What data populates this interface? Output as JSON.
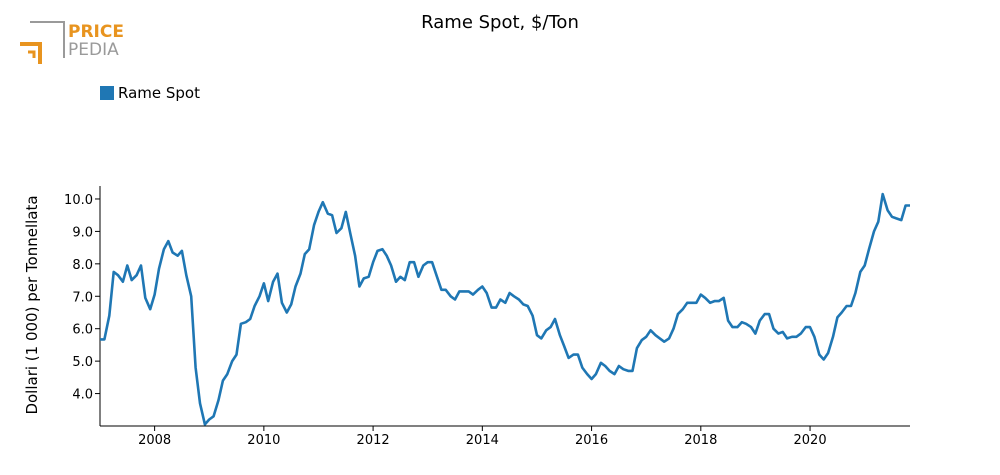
{
  "logo": {
    "line1": "PRICE",
    "line2": "PEDIA",
    "color_accent": "#e8941f",
    "color_gray": "#9a9a9a"
  },
  "colors": {
    "series": "#1f77b4"
  },
  "chart_data": {
    "type": "line",
    "title": "Rame Spot, $/Ton",
    "ylabel": "Dollari (1 000) per Tonnellata",
    "xlabel": "",
    "legend": "top-left",
    "grid": false,
    "xlim": [
      2007.0,
      2021.83
    ],
    "ylim": [
      3.0,
      10.4
    ],
    "x_ticks": [
      2008,
      2010,
      2012,
      2014,
      2016,
      2018,
      2020
    ],
    "x_tick_labels": [
      "2008",
      "2010",
      "2012",
      "2014",
      "2016",
      "2018",
      "2020"
    ],
    "y_ticks": [
      4.0,
      5.0,
      6.0,
      7.0,
      8.0,
      9.0,
      10.0
    ],
    "y_tick_labels": [
      "4.0",
      "5.0",
      "6.0",
      "7.0",
      "8.0",
      "9.0",
      "10.0"
    ],
    "series": [
      {
        "name": "Rame Spot",
        "color": "#1f77b4",
        "x": [
          2007.0,
          2007.08,
          2007.17,
          2007.25,
          2007.33,
          2007.42,
          2007.5,
          2007.58,
          2007.67,
          2007.75,
          2007.83,
          2007.92,
          2008.0,
          2008.08,
          2008.17,
          2008.25,
          2008.33,
          2008.42,
          2008.5,
          2008.58,
          2008.67,
          2008.75,
          2008.83,
          2008.92,
          2009.0,
          2009.08,
          2009.17,
          2009.25,
          2009.33,
          2009.42,
          2009.5,
          2009.58,
          2009.67,
          2009.75,
          2009.83,
          2009.92,
          2010.0,
          2010.08,
          2010.17,
          2010.25,
          2010.33,
          2010.42,
          2010.5,
          2010.58,
          2010.67,
          2010.75,
          2010.83,
          2010.92,
          2011.0,
          2011.08,
          2011.17,
          2011.25,
          2011.33,
          2011.42,
          2011.5,
          2011.58,
          2011.67,
          2011.75,
          2011.83,
          2011.92,
          2012.0,
          2012.08,
          2012.17,
          2012.25,
          2012.33,
          2012.42,
          2012.5,
          2012.58,
          2012.67,
          2012.75,
          2012.83,
          2012.92,
          2013.0,
          2013.08,
          2013.17,
          2013.25,
          2013.33,
          2013.42,
          2013.5,
          2013.58,
          2013.67,
          2013.75,
          2013.83,
          2013.92,
          2014.0,
          2014.08,
          2014.17,
          2014.25,
          2014.33,
          2014.42,
          2014.5,
          2014.58,
          2014.67,
          2014.75,
          2014.83,
          2014.92,
          2015.0,
          2015.08,
          2015.17,
          2015.25,
          2015.33,
          2015.42,
          2015.5,
          2015.58,
          2015.67,
          2015.75,
          2015.83,
          2015.92,
          2016.0,
          2016.08,
          2016.17,
          2016.25,
          2016.33,
          2016.42,
          2016.5,
          2016.58,
          2016.67,
          2016.75,
          2016.83,
          2016.92,
          2017.0,
          2017.08,
          2017.17,
          2017.25,
          2017.33,
          2017.42,
          2017.5,
          2017.58,
          2017.67,
          2017.75,
          2017.83,
          2017.92,
          2018.0,
          2018.08,
          2018.17,
          2018.25,
          2018.33,
          2018.42,
          2018.5,
          2018.58,
          2018.67,
          2018.75,
          2018.83,
          2018.92,
          2019.0,
          2019.08,
          2019.17,
          2019.25,
          2019.33,
          2019.42,
          2019.5,
          2019.58,
          2019.67,
          2019.75,
          2019.83,
          2019.92,
          2020.0,
          2020.08,
          2020.17,
          2020.25,
          2020.33,
          2020.42,
          2020.5,
          2020.58,
          2020.67,
          2020.75,
          2020.83,
          2020.92,
          2021.0,
          2021.08,
          2021.17,
          2021.25,
          2021.33,
          2021.42,
          2021.5,
          2021.58,
          2021.67,
          2021.75,
          2021.83
        ],
        "values": [
          5.67,
          5.67,
          6.4,
          7.75,
          7.65,
          7.45,
          7.95,
          7.5,
          7.65,
          7.95,
          6.95,
          6.6,
          7.05,
          7.85,
          8.45,
          8.7,
          8.35,
          8.25,
          8.4,
          7.65,
          7.0,
          4.8,
          3.7,
          3.05,
          3.2,
          3.3,
          3.8,
          4.4,
          4.6,
          5.0,
          5.2,
          6.15,
          6.2,
          6.3,
          6.7,
          7.0,
          7.4,
          6.85,
          7.45,
          7.7,
          6.8,
          6.5,
          6.75,
          7.3,
          7.7,
          8.3,
          8.45,
          9.2,
          9.6,
          9.9,
          9.55,
          9.5,
          8.95,
          9.1,
          9.6,
          8.95,
          8.25,
          7.3,
          7.55,
          7.6,
          8.05,
          8.4,
          8.45,
          8.25,
          7.95,
          7.45,
          7.6,
          7.5,
          8.05,
          8.05,
          7.6,
          7.95,
          8.05,
          8.05,
          7.6,
          7.2,
          7.2,
          7.0,
          6.9,
          7.15,
          7.15,
          7.15,
          7.05,
          7.2,
          7.3,
          7.1,
          6.65,
          6.65,
          6.9,
          6.8,
          7.1,
          7.0,
          6.9,
          6.75,
          6.7,
          6.4,
          5.8,
          5.7,
          5.95,
          6.05,
          6.3,
          5.8,
          5.45,
          5.1,
          5.2,
          5.2,
          4.8,
          4.6,
          4.45,
          4.6,
          4.95,
          4.85,
          4.7,
          4.6,
          4.85,
          4.75,
          4.7,
          4.7,
          5.4,
          5.65,
          5.75,
          5.95,
          5.8,
          5.7,
          5.6,
          5.7,
          6.0,
          6.45,
          6.6,
          6.8,
          6.8,
          6.8,
          7.05,
          6.95,
          6.8,
          6.85,
          6.85,
          6.95,
          6.25,
          6.05,
          6.05,
          6.2,
          6.15,
          6.05,
          5.85,
          6.25,
          6.45,
          6.45,
          6.0,
          5.85,
          5.9,
          5.7,
          5.75,
          5.75,
          5.85,
          6.05,
          6.05,
          5.75,
          5.2,
          5.05,
          5.25,
          5.75,
          6.35,
          6.5,
          6.7,
          6.7,
          7.1,
          7.75,
          7.95,
          8.45,
          9.0,
          9.3,
          10.15,
          9.65,
          9.45,
          9.4,
          9.35,
          9.8,
          9.8
        ]
      }
    ]
  }
}
